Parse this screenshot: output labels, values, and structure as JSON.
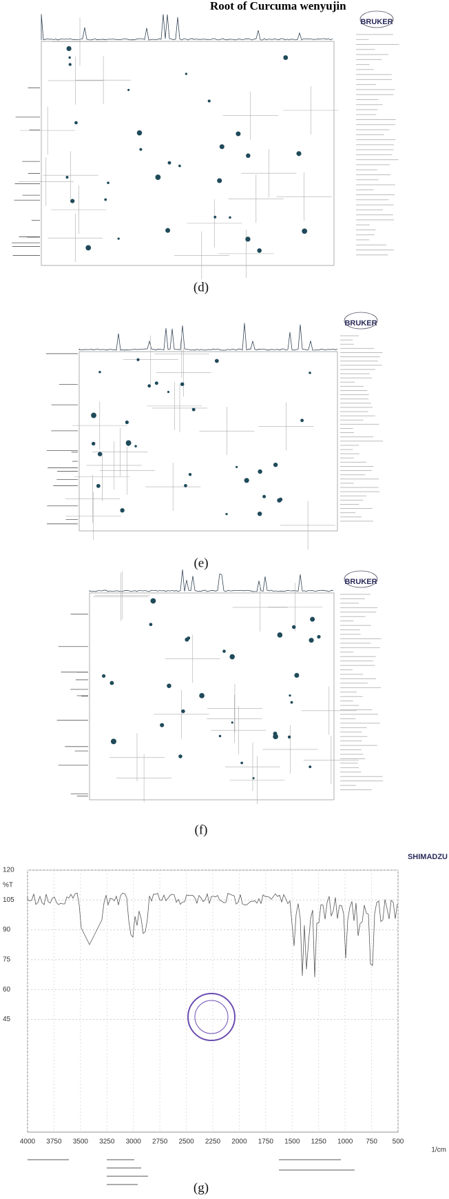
{
  "header": {
    "title": "Root of Curcuma wenyujin"
  },
  "panels": [
    {
      "label": "(d)",
      "logo": "BRUKER"
    },
    {
      "label": "(e)",
      "logo": "BRUKER"
    },
    {
      "label": "(f)",
      "logo": "BRUKER"
    },
    {
      "label": "(g)",
      "logo": "SHIMADZU",
      "y_unit": "%T",
      "x_unit": "1/cm",
      "y_ticks": [
        "120",
        "105",
        "90",
        "75",
        "60",
        "45"
      ],
      "x_ticks": [
        "4000",
        "3750",
        "3500",
        "3250",
        "3000",
        "2750",
        "2500",
        "2250",
        "2000",
        "1750",
        "1500",
        "1250",
        "1000",
        "750",
        "500"
      ]
    }
  ]
}
